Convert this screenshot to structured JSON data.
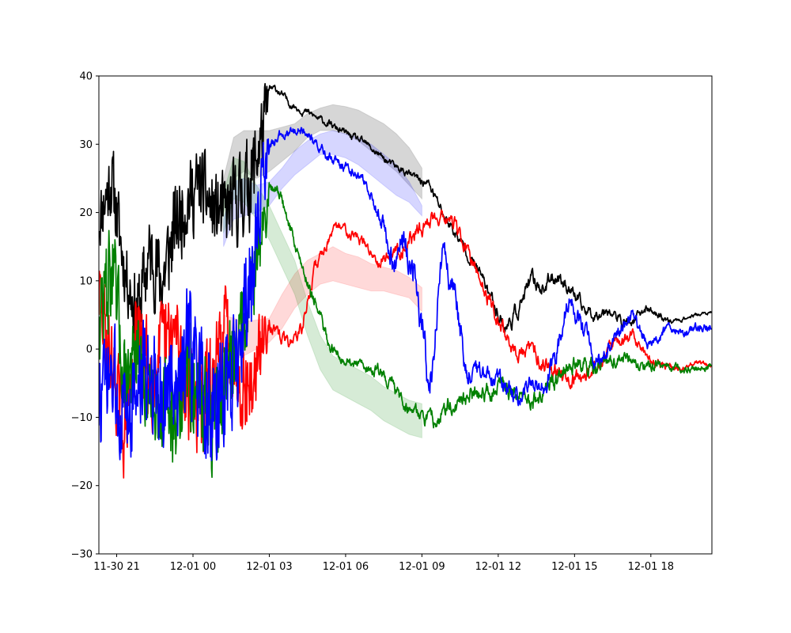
{
  "chart_data": {
    "type": "line",
    "title": "",
    "xlabel": "",
    "ylabel": "",
    "x_unit": "hours since 2023-11-30 00:00",
    "xlim": [
      20.3,
      44.4
    ],
    "ylim": [
      -30,
      40
    ],
    "grid": false,
    "x_ticks": [
      {
        "value": 21,
        "label": "11-30 21"
      },
      {
        "value": 24,
        "label": "12-01 00"
      },
      {
        "value": 27,
        "label": "12-01 03"
      },
      {
        "value": 30,
        "label": "12-01 06"
      },
      {
        "value": 33,
        "label": "12-01 09"
      },
      {
        "value": 36,
        "label": "12-01 12"
      },
      {
        "value": 39,
        "label": "12-01 15"
      },
      {
        "value": 42,
        "label": "12-01 18"
      }
    ],
    "y_ticks": [
      -30,
      -20,
      -10,
      0,
      10,
      20,
      30,
      40
    ],
    "bands": [
      {
        "color": "#808080",
        "opacity": 0.32,
        "x": [
          25.2,
          25.6,
          26.0,
          26.5,
          27.0,
          27.5,
          28.0,
          28.5,
          29.0,
          29.5,
          30.0,
          30.5,
          31.0,
          31.5,
          32.0,
          32.5,
          33.0
        ],
        "lower": [
          20,
          25,
          26,
          25,
          26,
          27.5,
          29,
          31,
          32,
          32,
          31.5,
          30.5,
          29,
          27.5,
          26,
          24,
          22
        ],
        "upper": [
          25,
          31,
          32,
          32,
          32,
          32.5,
          33,
          34.5,
          35.3,
          35.8,
          35.5,
          35,
          34,
          33,
          31.5,
          29.5,
          26.5
        ]
      },
      {
        "color": "#0000ff",
        "opacity": 0.16,
        "x": [
          25.2,
          25.6,
          26.0,
          26.5,
          27.0,
          27.5,
          28.0,
          28.5,
          29.0,
          29.5,
          30.0,
          30.5,
          31.0,
          31.5,
          32.0,
          32.5,
          33.0
        ],
        "lower": [
          15,
          19,
          19.5,
          20,
          21,
          23.5,
          25.5,
          27,
          28.5,
          28.5,
          28,
          27,
          25.5,
          24,
          22.5,
          21.5,
          19.5
        ],
        "upper": [
          19,
          24.5,
          25,
          24,
          24.5,
          26.5,
          29,
          30.5,
          31.5,
          32,
          31.5,
          31,
          30,
          28.5,
          27,
          24.5,
          21
        ]
      },
      {
        "color": "#ff0000",
        "opacity": 0.15,
        "x": [
          25.2,
          26.0,
          27.0,
          27.5,
          28.0,
          28.5,
          29.0,
          29.5,
          30.0,
          30.5,
          31.0,
          31.5,
          32.0,
          32.5,
          33.0
        ],
        "lower": [
          -2,
          -1,
          1,
          3,
          6,
          8,
          9.5,
          10,
          9.5,
          9,
          8.5,
          8.5,
          8,
          7.5,
          5.5
        ],
        "upper": [
          5,
          4,
          4.5,
          8,
          11,
          13,
          14,
          15,
          14,
          13.5,
          12.5,
          12,
          11.5,
          10.5,
          9
        ]
      },
      {
        "color": "#008000",
        "opacity": 0.16,
        "x": [
          25.2,
          25.6,
          26.0,
          26.5,
          27.0,
          27.5,
          28.0,
          28.5,
          29.0,
          29.5,
          30.0,
          30.5,
          31.0,
          31.5,
          32.0,
          32.5,
          33.0
        ],
        "lower": [
          17,
          22,
          21.5,
          19,
          16,
          12,
          8,
          2,
          -3,
          -6,
          -7,
          -8,
          -9,
          -10.5,
          -11.5,
          -12.5,
          -13
        ]
      },
      {
        "color": "#008000",
        "opacity": 0.0,
        "x": [],
        "lower": [],
        "upper": []
      }
    ],
    "series": [
      {
        "color": "#000000",
        "seed": 11,
        "noise_end": 27.0,
        "x": [
          20.3,
          20.8,
          21.3,
          21.8,
          22.3,
          22.8,
          23.3,
          23.8,
          24.3,
          24.8,
          25.3,
          25.8,
          26.3,
          26.8,
          27.0,
          27.3,
          27.8,
          28.3,
          28.8,
          29.3,
          29.8,
          30.3,
          30.8,
          31.3,
          31.8,
          32.3,
          32.8,
          33.3,
          33.8,
          34.3,
          34.8,
          35.3,
          35.8,
          36.3,
          36.8,
          37.3,
          37.8,
          38.3,
          38.8,
          39.3,
          39.8,
          40.3,
          40.8,
          41.3,
          41.8,
          42.3,
          42.8,
          43.3,
          43.8,
          44.4
        ],
        "y": [
          19,
          25,
          12,
          5,
          14,
          10,
          18,
          22,
          24,
          20,
          20,
          22,
          25,
          33,
          38,
          38,
          36,
          35,
          34,
          33,
          32,
          31,
          30,
          28.5,
          27,
          26,
          25,
          24,
          20,
          17,
          14,
          11,
          7,
          3,
          6,
          10,
          9,
          11,
          9,
          6,
          5,
          6,
          4,
          4,
          6,
          5,
          4,
          4.5,
          5,
          5.3
        ],
        "amps": [
          5,
          6,
          5,
          6,
          6,
          7,
          7,
          6,
          6,
          6,
          6,
          7,
          7,
          6,
          1,
          0.8,
          0.8,
          0.8,
          0.8,
          0.8,
          0.8,
          0.8,
          0.8,
          0.8,
          0.8,
          0.8,
          0.9,
          1.2,
          1.2,
          1.2,
          1.2,
          1.2,
          1.5,
          1.8,
          1.8,
          1.8,
          1.8,
          1.8,
          1.5,
          1.5,
          1.2,
          1.2,
          1.2,
          1,
          1,
          0.8,
          0.6,
          0.5,
          0.4,
          0.4
        ]
      },
      {
        "color": "#ff0000",
        "seed": 29,
        "noise_end": 27.0,
        "x": [
          20.3,
          20.8,
          21.3,
          21.8,
          22.3,
          22.8,
          23.3,
          23.8,
          24.3,
          24.8,
          25.3,
          25.8,
          26.3,
          26.8,
          27.0,
          27.3,
          27.8,
          28.3,
          28.8,
          29.3,
          29.8,
          30.3,
          30.8,
          31.3,
          31.8,
          32.3,
          32.8,
          33.3,
          33.8,
          34.3,
          34.8,
          35.3,
          35.8,
          36.3,
          36.8,
          37.3,
          37.8,
          38.3,
          38.8,
          39.3,
          39.8,
          40.3,
          40.8,
          41.3,
          41.8,
          42.3,
          42.8,
          43.3,
          43.8,
          44.4
        ],
        "y": [
          8,
          -2,
          -12,
          2,
          -4,
          0,
          2,
          -5,
          -8,
          -6,
          4,
          -4,
          -6,
          2,
          4,
          2,
          1,
          3,
          12,
          16,
          18,
          17,
          15,
          13,
          14,
          15,
          17,
          19,
          20,
          18,
          14,
          10,
          6,
          2,
          -1,
          0,
          -2,
          -3,
          -4,
          -4,
          -3,
          0,
          1,
          2,
          -1,
          -2,
          -3,
          -3,
          -2,
          -2.5
        ],
        "amps": [
          7,
          6,
          7,
          7,
          8,
          7,
          8,
          9,
          9,
          8,
          7,
          7,
          7,
          5,
          1.5,
          1.5,
          1.5,
          1.5,
          1.5,
          1.2,
          1.2,
          1.2,
          1.2,
          1.2,
          1.5,
          1.5,
          1.8,
          1.8,
          1.8,
          1.8,
          1.8,
          1.8,
          1.8,
          1.8,
          1.8,
          1.8,
          1.8,
          1.8,
          1.8,
          1.8,
          1.5,
          1.5,
          1.2,
          1.2,
          1,
          1,
          0.8,
          0.6,
          0.5,
          0.5
        ]
      },
      {
        "color": "#008000",
        "seed": 47,
        "noise_end": 27.0,
        "x": [
          20.3,
          20.8,
          21.3,
          21.8,
          22.3,
          22.8,
          23.3,
          23.8,
          24.3,
          24.8,
          25.3,
          25.8,
          26.3,
          26.8,
          27.0,
          27.3,
          27.8,
          28.3,
          28.8,
          29.3,
          29.8,
          30.3,
          30.8,
          31.3,
          31.8,
          32.3,
          32.8,
          33.3,
          33.8,
          34.3,
          34.8,
          35.3,
          35.8,
          36.3,
          36.8,
          37.3,
          37.8,
          38.3,
          38.8,
          39.3,
          39.8,
          40.3,
          40.8,
          41.3,
          41.8,
          42.3,
          42.8,
          43.3,
          43.8,
          44.4
        ],
        "y": [
          5,
          12,
          -4,
          -2,
          -6,
          -8,
          -10,
          -4,
          -6,
          -12,
          -4,
          2,
          10,
          18,
          23,
          24,
          18,
          12,
          7,
          1,
          -1,
          -2,
          -3,
          -3,
          -5,
          -8,
          -9,
          -11,
          -9,
          -8,
          -7,
          -6,
          -6,
          -5,
          -7,
          -8,
          -6,
          -4,
          -2,
          -2,
          -3,
          -2,
          -1,
          -2,
          -3,
          -2,
          -3,
          -3,
          -3,
          -2.5
        ],
        "amps": [
          8,
          8,
          8,
          7,
          7,
          7,
          8,
          8,
          8,
          8,
          7,
          7,
          7,
          5,
          1.5,
          1.5,
          1.5,
          1.5,
          1.5,
          1.2,
          1.2,
          1.2,
          1.2,
          1.5,
          1.5,
          1.5,
          1.5,
          2,
          2,
          2,
          2,
          2,
          2,
          2,
          2,
          2,
          2,
          2,
          2,
          2,
          1.8,
          1.5,
          1.5,
          1.2,
          1.2,
          1,
          1,
          0.8,
          0.8,
          0.8
        ]
      },
      {
        "color": "#0000ff",
        "seed": 73,
        "noise_end": 27.0,
        "x": [
          20.3,
          20.8,
          21.3,
          21.8,
          22.3,
          22.8,
          23.3,
          23.8,
          24.3,
          24.8,
          25.3,
          25.8,
          26.3,
          26.8,
          27.0,
          27.3,
          27.8,
          28.3,
          28.8,
          29.3,
          29.8,
          30.3,
          30.8,
          31.3,
          31.8,
          32.3,
          32.8,
          33.3,
          33.8,
          34.3,
          34.8,
          35.3,
          35.8,
          36.3,
          36.8,
          37.3,
          37.8,
          38.3,
          38.8,
          39.3,
          39.8,
          40.3,
          40.8,
          41.3,
          41.8,
          42.3,
          42.8,
          43.3,
          43.8,
          44.4
        ],
        "y": [
          -8,
          -4,
          -10,
          -6,
          -2,
          -8,
          -4,
          0,
          -6,
          -10,
          -6,
          0,
          10,
          25,
          30,
          31,
          32,
          32,
          30,
          28,
          27,
          26,
          24,
          20,
          14,
          16,
          10,
          -6,
          14,
          8,
          -4,
          -3,
          -4,
          -6,
          -7,
          -5,
          -6,
          0,
          8,
          3,
          -2,
          0,
          3,
          5,
          1,
          2,
          3,
          2,
          3,
          3.5
        ],
        "amps": [
          8,
          8,
          8,
          8,
          8,
          9,
          9,
          9,
          9,
          9,
          9,
          9,
          9,
          6,
          1.5,
          1.2,
          1.2,
          1.2,
          1.2,
          1.2,
          1.2,
          1.2,
          1.5,
          2,
          3,
          4,
          4,
          4,
          3,
          3,
          3,
          2,
          2,
          2,
          2,
          2,
          2.5,
          2.5,
          2.5,
          2.5,
          2,
          2,
          1.8,
          1.5,
          1.5,
          1.2,
          1.2,
          1,
          1,
          1
        ]
      }
    ]
  }
}
